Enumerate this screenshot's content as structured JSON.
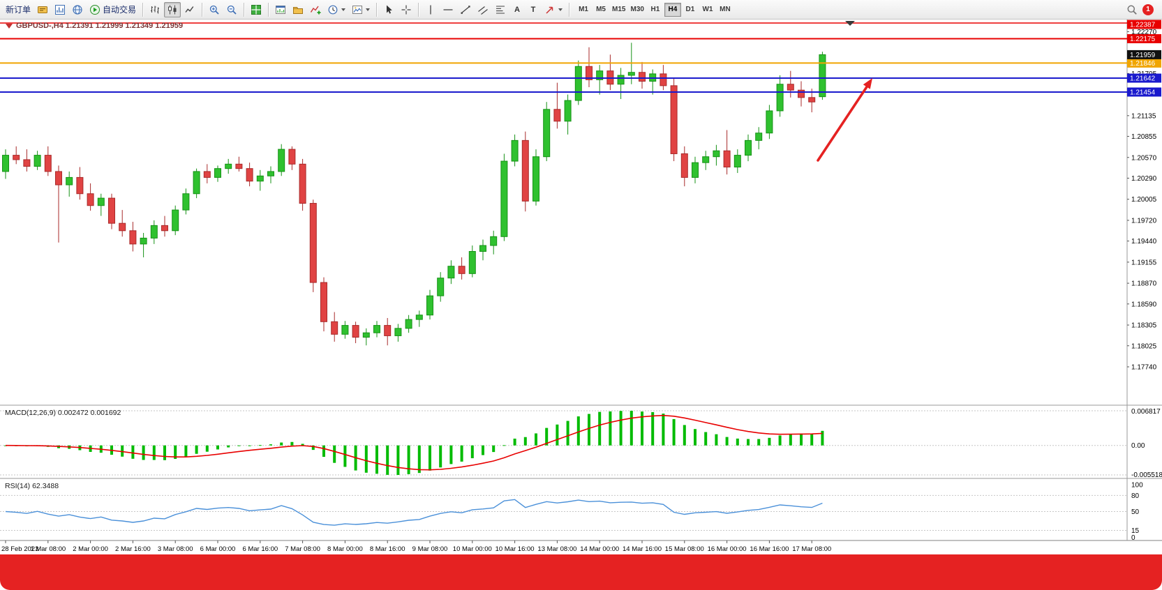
{
  "toolbar": {
    "new_order_label": "新订单",
    "auto_trading_label": "自动交易",
    "icons": {
      "text_tool": "A",
      "label_tool": "T"
    },
    "timeframes": [
      "M1",
      "M5",
      "M15",
      "M30",
      "H1",
      "H4",
      "D1",
      "W1",
      "MN"
    ],
    "active_timeframe": "H4",
    "notification_badge": "1"
  },
  "chart": {
    "info_line": "GBPUSD-,H4 1.21391 1.21999 1.21349 1.21959",
    "current_price": "1.21959",
    "price_axis_labels": [
      "1.22270",
      "1.21705",
      "1.21135",
      "1.20855",
      "1.20570",
      "1.20290",
      "1.20005",
      "1.19720",
      "1.19440",
      "1.19155",
      "1.18870",
      "1.18590",
      "1.18305",
      "1.18025",
      "1.17740"
    ],
    "hlines": [
      {
        "price": "1.22387",
        "color": "#e80000",
        "width": 1.5
      },
      {
        "price": "1.22175",
        "color": "#e80000",
        "width": 2
      },
      {
        "price": "1.21846",
        "color": "#f0a500",
        "width": 2
      },
      {
        "price": "1.21642",
        "color": "#1a1acd",
        "width": 2
      },
      {
        "price": "1.21454",
        "color": "#1a1acd",
        "width": 2
      }
    ]
  },
  "macd_panel": {
    "label": "MACD(12,26,9) 0.002472 0.001692",
    "axis_labels": [
      "0.006817",
      "0.00",
      "-0.005518"
    ]
  },
  "rsi_panel": {
    "label": "RSI(14) 62.3488",
    "axis_labels": [
      "100",
      "80",
      "50",
      "15",
      "0"
    ]
  },
  "chart_data": {
    "type": "candlestick",
    "symbol": "GBPUSD-",
    "timeframe": "H4",
    "last_bar": {
      "open": 1.21391,
      "high": 1.21999,
      "low": 1.21349,
      "close": 1.21959
    },
    "horizontal_levels": [
      1.22387,
      1.22175,
      1.21846,
      1.21642,
      1.21454
    ],
    "x_labels": [
      "28 Feb 2023",
      "1 Mar 08:00",
      "2 Mar 00:00",
      "2 Mar 16:00",
      "3 Mar 08:00",
      "6 Mar 00:00",
      "6 Mar 16:00",
      "7 Mar 08:00",
      "8 Mar 00:00",
      "8 Mar 16:00",
      "9 Mar 08:00",
      "10 Mar 00:00",
      "10 Mar 16:00",
      "13 Mar 08:00",
      "14 Mar 00:00",
      "14 Mar 16:00",
      "15 Mar 08:00",
      "16 Mar 00:00",
      "16 Mar 16:00",
      "17 Mar 08:00"
    ],
    "candles": [
      [
        1.2038,
        1.2068,
        1.2028,
        1.206
      ],
      [
        1.206,
        1.2072,
        1.2048,
        1.2054
      ],
      [
        1.2054,
        1.2068,
        1.2038,
        1.2045
      ],
      [
        1.2045,
        1.2066,
        1.204,
        1.206
      ],
      [
        1.206,
        1.2072,
        1.2032,
        1.2038
      ],
      [
        1.2038,
        1.2046,
        1.1942,
        1.202
      ],
      [
        1.202,
        1.2038,
        1.2004,
        1.203
      ],
      [
        1.203,
        1.2044,
        1.2,
        1.2008
      ],
      [
        1.2008,
        1.2022,
        1.1985,
        1.1992
      ],
      [
        1.1992,
        1.2008,
        1.1978,
        1.2002
      ],
      [
        1.2002,
        1.2008,
        1.196,
        1.1968
      ],
      [
        1.1968,
        1.1986,
        1.195,
        1.1958
      ],
      [
        1.1958,
        1.197,
        1.193,
        1.194
      ],
      [
        1.194,
        1.1955,
        1.1922,
        1.1948
      ],
      [
        1.1948,
        1.1972,
        1.194,
        1.1965
      ],
      [
        1.1965,
        1.1978,
        1.195,
        1.1958
      ],
      [
        1.1958,
        1.1992,
        1.1952,
        1.1986
      ],
      [
        1.1986,
        1.2015,
        1.198,
        1.2008
      ],
      [
        1.2008,
        1.2042,
        1.2002,
        1.2038
      ],
      [
        1.2038,
        1.2048,
        1.2022,
        1.203
      ],
      [
        1.203,
        1.2046,
        1.2024,
        1.2042
      ],
      [
        1.2042,
        1.2055,
        1.2035,
        1.2048
      ],
      [
        1.2048,
        1.2058,
        1.2038,
        1.2042
      ],
      [
        1.2042,
        1.205,
        1.2018,
        1.2025
      ],
      [
        1.2025,
        1.204,
        1.2012,
        1.2032
      ],
      [
        1.2032,
        1.2045,
        1.2022,
        1.2038
      ],
      [
        1.2038,
        1.2075,
        1.2032,
        1.2068
      ],
      [
        1.2068,
        1.2072,
        1.204,
        1.2048
      ],
      [
        1.2048,
        1.2055,
        1.1985,
        1.1995
      ],
      [
        1.1995,
        1.2,
        1.1875,
        1.1888
      ],
      [
        1.1888,
        1.1895,
        1.1822,
        1.1835
      ],
      [
        1.1835,
        1.1848,
        1.1808,
        1.1818
      ],
      [
        1.1818,
        1.1836,
        1.1812,
        1.183
      ],
      [
        1.183,
        1.1835,
        1.1806,
        1.1814
      ],
      [
        1.1814,
        1.1826,
        1.1803,
        1.182
      ],
      [
        1.182,
        1.1836,
        1.1814,
        1.183
      ],
      [
        1.183,
        1.184,
        1.1803,
        1.1816
      ],
      [
        1.1816,
        1.1832,
        1.1808,
        1.1826
      ],
      [
        1.1826,
        1.1844,
        1.182,
        1.1838
      ],
      [
        1.1838,
        1.185,
        1.1828,
        1.1844
      ],
      [
        1.1844,
        1.1878,
        1.1838,
        1.187
      ],
      [
        1.187,
        1.1902,
        1.1862,
        1.1894
      ],
      [
        1.1894,
        1.1918,
        1.1886,
        1.191
      ],
      [
        1.191,
        1.1922,
        1.1892,
        1.19
      ],
      [
        1.19,
        1.1938,
        1.1895,
        1.193
      ],
      [
        1.193,
        1.1946,
        1.1918,
        1.1938
      ],
      [
        1.1938,
        1.1958,
        1.1926,
        1.195
      ],
      [
        1.195,
        1.2062,
        1.1944,
        1.2052
      ],
      [
        1.2052,
        1.2088,
        1.2045,
        1.208
      ],
      [
        1.208,
        1.2092,
        1.1984,
        1.1998
      ],
      [
        1.1998,
        1.2068,
        1.1992,
        1.2058
      ],
      [
        1.2058,
        1.2132,
        1.2052,
        1.2122
      ],
      [
        1.2122,
        1.2158,
        1.2096,
        1.2106
      ],
      [
        1.2106,
        1.2142,
        1.2088,
        1.2134
      ],
      [
        1.2134,
        1.2188,
        1.2128,
        1.218
      ],
      [
        1.218,
        1.2206,
        1.2152,
        1.2162
      ],
      [
        1.2162,
        1.2182,
        1.2142,
        1.2174
      ],
      [
        1.2174,
        1.2196,
        1.2148,
        1.2156
      ],
      [
        1.2156,
        1.2178,
        1.2136,
        1.2168
      ],
      [
        1.2168,
        1.2212,
        1.2156,
        1.2172
      ],
      [
        1.2172,
        1.2186,
        1.215,
        1.216
      ],
      [
        1.216,
        1.2176,
        1.2142,
        1.217
      ],
      [
        1.217,
        1.2182,
        1.2148,
        1.2154
      ],
      [
        1.2154,
        1.2164,
        1.2052,
        1.2062
      ],
      [
        1.2062,
        1.2072,
        1.2018,
        1.203
      ],
      [
        1.203,
        1.2058,
        1.2022,
        1.205
      ],
      [
        1.205,
        1.2066,
        1.204,
        1.2058
      ],
      [
        1.2058,
        1.2074,
        1.2046,
        1.2066
      ],
      [
        1.2066,
        1.2094,
        1.2034,
        1.2044
      ],
      [
        1.2044,
        1.2068,
        1.2036,
        1.206
      ],
      [
        1.206,
        1.2088,
        1.2052,
        1.208
      ],
      [
        1.208,
        1.2098,
        1.2068,
        1.209
      ],
      [
        1.209,
        1.2128,
        1.2082,
        1.212
      ],
      [
        1.212,
        1.2168,
        1.2112,
        1.2156
      ],
      [
        1.2156,
        1.2174,
        1.2138,
        1.2148
      ],
      [
        1.2148,
        1.216,
        1.2126,
        1.2138
      ],
      [
        1.2138,
        1.215,
        1.2118,
        1.2132
      ],
      [
        1.21391,
        1.21999,
        1.21349,
        1.21959
      ]
    ],
    "indicators": [
      {
        "name": "MACD",
        "params": [
          12,
          26,
          9
        ],
        "current_values": [
          0.002472,
          0.001692
        ],
        "scale": [
          -0.005518,
          0.006817
        ]
      },
      {
        "name": "RSI",
        "params": [
          14
        ],
        "current_value": 62.3488,
        "scale": [
          0,
          100
        ],
        "levels": [
          80,
          50,
          15
        ]
      }
    ]
  },
  "colors": {
    "up": "#2fc12f",
    "up_border": "#169216",
    "down": "#e04343",
    "down_border": "#a82a2a",
    "macd_hist": "#00bb00",
    "macd_signal": "#e80000",
    "rsi_line": "#4a90d9",
    "arrow": "#e52222",
    "current_tag_bg": "#111111",
    "banner": "#e52222"
  }
}
